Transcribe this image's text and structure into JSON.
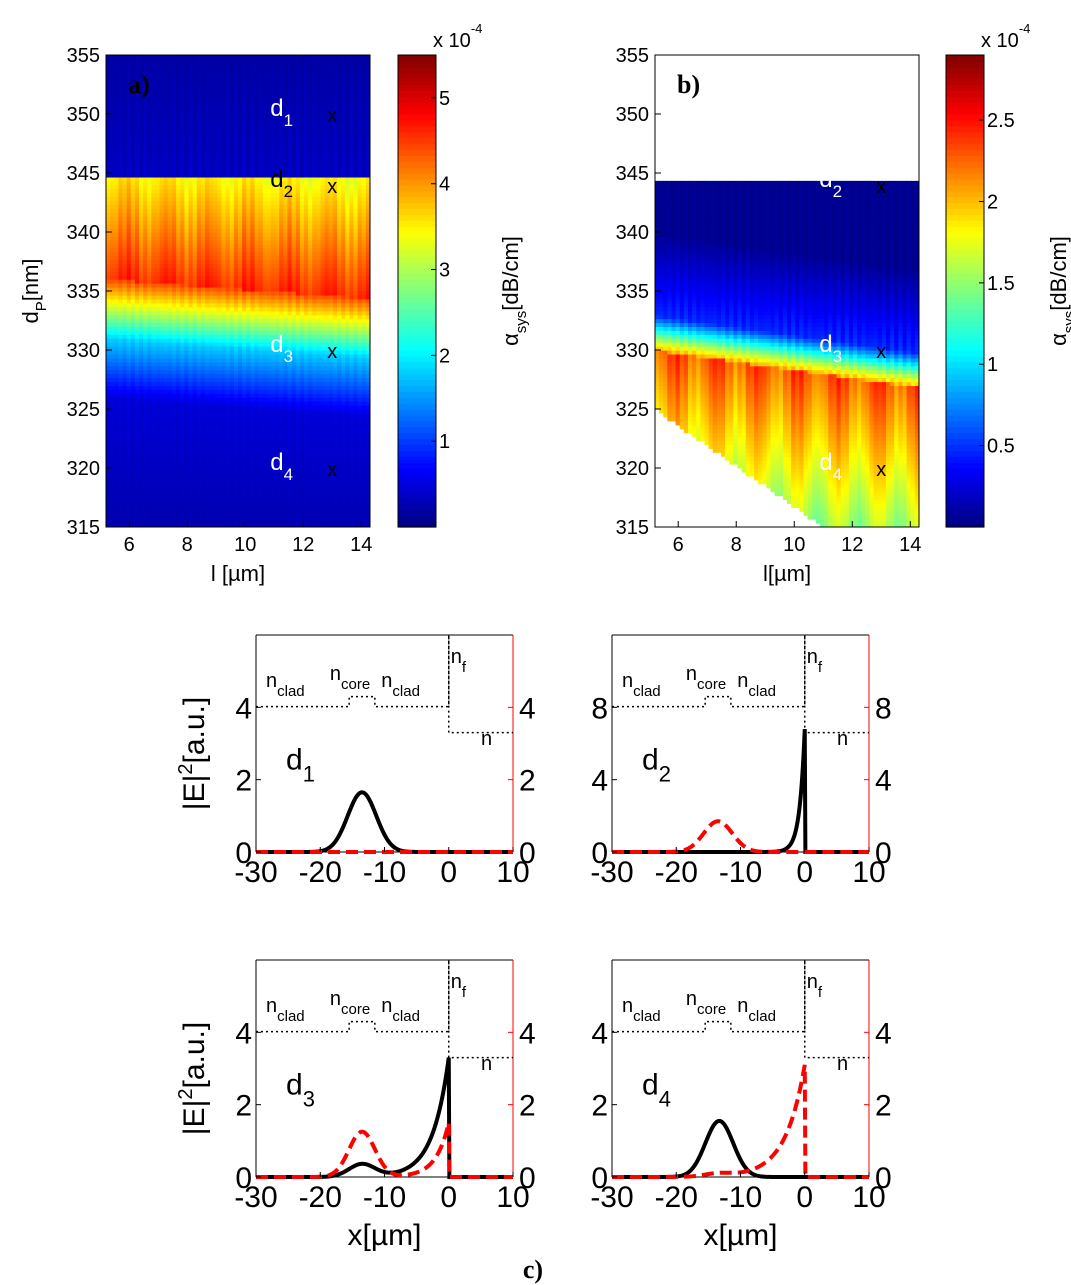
{
  "figure": {
    "caption": "c)"
  },
  "chart_data": [
    {
      "id": "a",
      "type": "heatmap",
      "panel_label": "a)",
      "xlabel": "l [µm]",
      "ylabel": "d",
      "ylabel_sub": "P",
      "ylabel_unit": "[nm]",
      "xlim": [
        5.2,
        14.3
      ],
      "ylim": [
        315,
        355
      ],
      "xticks": [
        "6",
        "8",
        "10",
        "12",
        "14"
      ],
      "yticks": [
        "315",
        "320",
        "325",
        "330",
        "335",
        "340",
        "345",
        "350",
        "355"
      ],
      "colorbar": {
        "label": "α",
        "label_sub": "sys",
        "label_unit": "[dB/cm]",
        "exponent": "x 10",
        "exponent_power": "-4",
        "ticks": [
          "1",
          "2",
          "3",
          "4",
          "5"
        ],
        "range": [
          0,
          5.5
        ],
        "colormap": "jet"
      },
      "field": {
        "cut_dp": 344.5,
        "below_peak_dp": 340.0,
        "below_peak_value": 4.6,
        "upper_value": 0.2,
        "at_330_value": 1.8,
        "bottom_value": 0.3
      },
      "markers": [
        {
          "label": "d",
          "sub": "1",
          "mark": "x",
          "x": 13.0,
          "y": 350,
          "color": "#ffffff"
        },
        {
          "label": "d",
          "sub": "2",
          "mark": "x",
          "x": 13.0,
          "y": 344,
          "color": "#000000"
        },
        {
          "label": "d",
          "sub": "3",
          "mark": "x",
          "x": 13.0,
          "y": 330,
          "color": "#ffffff"
        },
        {
          "label": "d",
          "sub": "4",
          "mark": "x",
          "x": 13.0,
          "y": 320,
          "color": "#ffffff"
        }
      ]
    },
    {
      "id": "b",
      "type": "heatmap",
      "panel_label": "b)",
      "xlabel": "l[µm]",
      "xlim": [
        5.2,
        14.3
      ],
      "ylim": [
        315,
        355
      ],
      "xticks": [
        "6",
        "8",
        "10",
        "12",
        "14"
      ],
      "yticks": [
        "315",
        "320",
        "325",
        "330",
        "335",
        "340",
        "345",
        "350",
        "355"
      ],
      "colorbar": {
        "label": "α",
        "label_sub": "sys",
        "label_unit": "[dB/cm]",
        "exponent": "x 10",
        "exponent_power": "-4",
        "ticks": [
          "0.5",
          "1",
          "1.5",
          "2",
          "2.5"
        ],
        "range": [
          0,
          2.9
        ],
        "colormap": "jet"
      },
      "field": {
        "top_dp": 344.2,
        "peak_dp": 328,
        "peak_value": 2.45,
        "boundary_dp_at_xmin": 325,
        "boundary_dp_at_11": 315
      },
      "markers": [
        {
          "label": "d",
          "sub": "2",
          "mark": "x",
          "x": 13.0,
          "y": 344,
          "color": "#ffffff"
        },
        {
          "label": "d",
          "sub": "3",
          "mark": "x",
          "x": 13.0,
          "y": 330,
          "color": "#ffffff"
        },
        {
          "label": "d",
          "sub": "4",
          "mark": "x",
          "x": 13.0,
          "y": 320,
          "color": "#ffffff"
        }
      ]
    },
    {
      "id": "c1",
      "type": "line",
      "label": "d",
      "label_sub": "1",
      "xlabel": "",
      "ylabel": "|E|",
      "ylabel_sup": "2",
      "ylabel_unit": "[a.u.]",
      "xlim": [
        -30,
        10
      ],
      "ylim": [
        0,
        6
      ],
      "xticks": [
        "-30",
        "-20",
        "-10",
        "0",
        "10"
      ],
      "yticks_left": [
        "0",
        "2",
        "4"
      ],
      "yticks_right": [
        "0",
        "2",
        "4"
      ],
      "series": [
        {
          "color": "#000000",
          "dash": false,
          "peaks": [
            {
              "x": -13.5,
              "a": 1.65,
              "w": 3.3
            }
          ],
          "spike": null
        },
        {
          "color": "#ff0000",
          "dash": true,
          "peaks": [],
          "spike": null
        }
      ]
    },
    {
      "id": "c2",
      "type": "line",
      "label": "d",
      "label_sub": "2",
      "xlabel": "",
      "xlim": [
        -30,
        10
      ],
      "ylim": [
        0,
        12
      ],
      "xticks": [
        "-30",
        "-20",
        "-10",
        "0",
        "10"
      ],
      "yticks_left": [
        "0",
        "4",
        "8"
      ],
      "yticks_right": [
        "0",
        "4",
        "8"
      ],
      "series": [
        {
          "color": "#000000",
          "dash": false,
          "peaks": [],
          "spike": {
            "a": 6.8,
            "decay": 0.8
          }
        },
        {
          "color": "#ff0000",
          "dash": true,
          "peaks": [
            {
              "x": -13.5,
              "a": 1.7,
              "w": 3.3
            }
          ],
          "spike": null
        }
      ]
    },
    {
      "id": "c3",
      "type": "line",
      "label": "d",
      "label_sub": "3",
      "xlabel": "x[µm]",
      "ylabel": "|E|",
      "ylabel_sup": "2",
      "ylabel_unit": "[a.u.]",
      "xlim": [
        -30,
        10
      ],
      "ylim": [
        0,
        6
      ],
      "xticks": [
        "-30",
        "-20",
        "-10",
        "0",
        "10"
      ],
      "yticks_left": [
        "0",
        "2",
        "4"
      ],
      "yticks_right": [
        "0",
        "2",
        "4"
      ],
      "series": [
        {
          "color": "#000000",
          "dash": false,
          "peaks": [
            {
              "x": -13.5,
              "a": 0.35,
              "w": 3.0
            }
          ],
          "spike": {
            "a": 3.3,
            "decay": 2.5
          }
        },
        {
          "color": "#ff0000",
          "dash": true,
          "peaks": [
            {
              "x": -13.5,
              "a": 1.25,
              "w": 3.0
            }
          ],
          "spike": {
            "a": 1.5,
            "decay": 2.0
          }
        }
      ]
    },
    {
      "id": "c4",
      "type": "line",
      "label": "d",
      "label_sub": "4",
      "xlabel": "x[µm]",
      "xlim": [
        -30,
        10
      ],
      "ylim": [
        0,
        6
      ],
      "xticks": [
        "-30",
        "-20",
        "-10",
        "0",
        "10"
      ],
      "yticks_left": [
        "0",
        "2",
        "4"
      ],
      "yticks_right": [
        "0",
        "2",
        "4"
      ],
      "series": [
        {
          "color": "#000000",
          "dash": false,
          "peaks": [
            {
              "x": -13.3,
              "a": 1.55,
              "w": 3.2
            }
          ],
          "spike": null
        },
        {
          "color": "#ff0000",
          "dash": true,
          "peaks": [
            {
              "x": -13.5,
              "a": 0.08,
              "w": 3.0
            }
          ],
          "spike": {
            "a": 3.1,
            "decay": 3.0
          }
        }
      ]
    }
  ],
  "index_profile": {
    "labels": [
      {
        "base": "n",
        "sub": "clad"
      },
      {
        "base": "n",
        "sub": "core"
      },
      {
        "base": "n",
        "sub": "clad"
      },
      {
        "base": "n",
        "sub": "f"
      },
      {
        "base": "n",
        "sub": ""
      }
    ],
    "levels_x": [
      -30,
      -15.5,
      -11.5,
      0,
      10
    ],
    "note": "refractive index profile overlay (dotted)"
  }
}
